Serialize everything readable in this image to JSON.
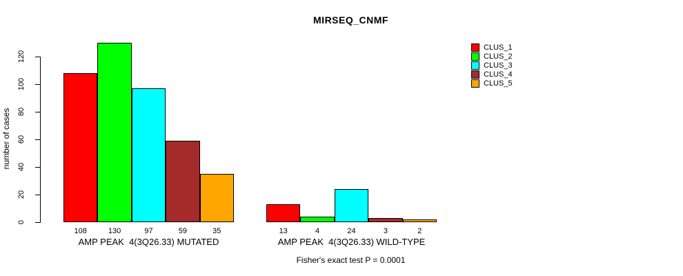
{
  "chart_data": {
    "type": "bar",
    "title": "MIRSEQ_CNMF",
    "ylabel": "number of cases",
    "xlabel": "",
    "annotation": "Fisher's exact test P = 0.0001",
    "yticks": [
      0,
      20,
      40,
      60,
      80,
      100,
      120
    ],
    "ylim": [
      0,
      135
    ],
    "grid": false,
    "legend_position": "top-right",
    "bar_value_labels": true,
    "categories": [
      "AMP PEAK  4(3Q26.33) MUTATED",
      "AMP PEAK  4(3Q26.33) WILD-TYPE"
    ],
    "series": [
      {
        "name": "CLUS_1",
        "color": "#FF0000",
        "values": [
          108,
          13
        ]
      },
      {
        "name": "CLUS_2",
        "color": "#00FF00",
        "values": [
          130,
          4
        ]
      },
      {
        "name": "CLUS_3",
        "color": "#00FFFF",
        "values": [
          97,
          24
        ]
      },
      {
        "name": "CLUS_4",
        "color": "#A52A2A",
        "values": [
          59,
          3
        ]
      },
      {
        "name": "CLUS_5",
        "color": "#FFA500",
        "values": [
          35,
          2
        ]
      }
    ],
    "bar_border_color": "#000000",
    "background_color": "#FFFFFF"
  }
}
